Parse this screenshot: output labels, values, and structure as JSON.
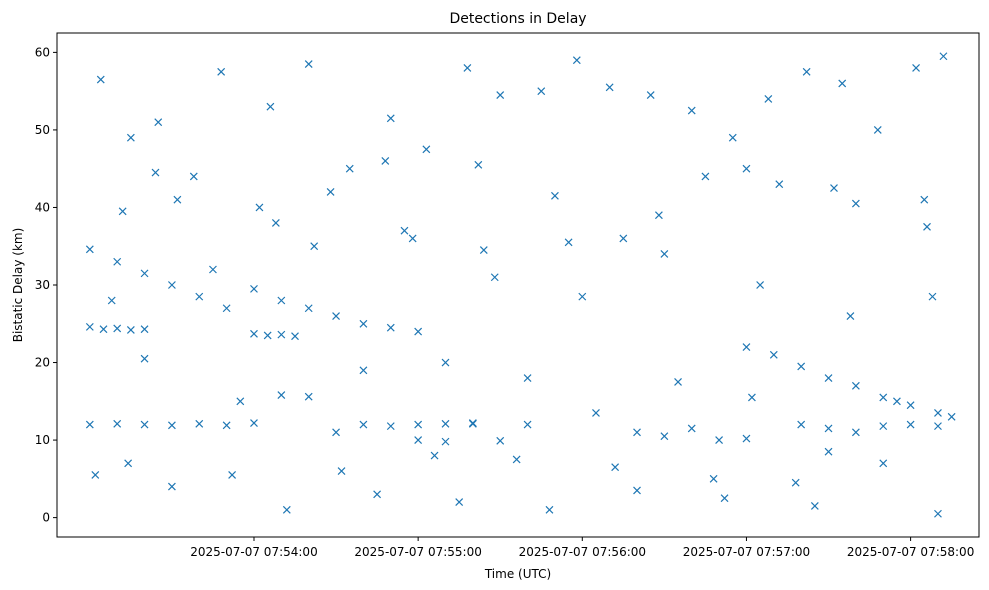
{
  "chart_data": {
    "type": "scatter",
    "title": "Detections in Delay",
    "xlabel": "Time (UTC)",
    "ylabel": "Bistatic Delay (km)",
    "marker": "x",
    "color": "#1f77b4",
    "xlim": [
      "2025-07-07 07:52:48",
      "2025-07-07 07:58:25"
    ],
    "ylim": [
      -2.5,
      62.5
    ],
    "x_ticks": [
      "2025-07-07 07:54:00",
      "2025-07-07 07:55:00",
      "2025-07-07 07:56:00",
      "2025-07-07 07:57:00",
      "2025-07-07 07:58:00"
    ],
    "y_ticks": [
      0,
      10,
      20,
      30,
      40,
      50,
      60
    ],
    "grid": false,
    "x": [
      "2025-07-07 07:53:00",
      "2025-07-07 07:53:10",
      "2025-07-07 07:53:20",
      "2025-07-07 07:53:30",
      "2025-07-07 07:53:40",
      "2025-07-07 07:53:50",
      "2025-07-07 07:54:00",
      "2025-07-07 07:54:10",
      "2025-07-07 07:54:20",
      "2025-07-07 07:54:30",
      "2025-07-07 07:54:40",
      "2025-07-07 07:54:50",
      "2025-07-07 07:55:00",
      "2025-07-07 07:53:00",
      "2025-07-07 07:53:05",
      "2025-07-07 07:53:10",
      "2025-07-07 07:53:15",
      "2025-07-07 07:53:20",
      "2025-07-07 07:53:00",
      "2025-07-07 07:53:10",
      "2025-07-07 07:53:20",
      "2025-07-07 07:53:30",
      "2025-07-07 07:53:40",
      "2025-07-07 07:53:50",
      "2025-07-07 07:54:00",
      "2025-07-07 07:54:10",
      "2025-07-07 07:54:20",
      "2025-07-07 07:54:30",
      "2025-07-07 07:54:40",
      "2025-07-07 07:54:50",
      "2025-07-07 07:55:00",
      "2025-07-07 07:55:10",
      "2025-07-07 07:55:20",
      "2025-07-07 07:54:00",
      "2025-07-07 07:54:05",
      "2025-07-07 07:54:10",
      "2025-07-07 07:54:15",
      "2025-07-07 07:55:00",
      "2025-07-07 07:55:10",
      "2025-07-07 07:55:20",
      "2025-07-07 07:55:30",
      "2025-07-07 07:55:40",
      "2025-07-07 07:56:20",
      "2025-07-07 07:56:30",
      "2025-07-07 07:56:40",
      "2025-07-07 07:56:50",
      "2025-07-07 07:57:00",
      "2025-07-07 07:57:00",
      "2025-07-07 07:57:10",
      "2025-07-07 07:57:20",
      "2025-07-07 07:57:30",
      "2025-07-07 07:57:40",
      "2025-07-07 07:57:50",
      "2025-07-07 07:58:00",
      "2025-07-07 07:58:10",
      "2025-07-07 07:58:15",
      "2025-07-07 07:57:20",
      "2025-07-07 07:57:30",
      "2025-07-07 07:57:40",
      "2025-07-07 07:57:50",
      "2025-07-07 07:58:00",
      "2025-07-07 07:58:10",
      "2025-07-07 07:53:04",
      "2025-07-07 07:53:15",
      "2025-07-07 07:53:25",
      "2025-07-07 07:53:32",
      "2025-07-07 07:53:48",
      "2025-07-07 07:54:06",
      "2025-07-07 07:54:20",
      "2025-07-07 07:54:35",
      "2025-07-07 07:54:50",
      "2025-07-07 07:55:03",
      "2025-07-07 07:55:18",
      "2025-07-07 07:55:30",
      "2025-07-07 07:55:45",
      "2025-07-07 07:55:58",
      "2025-07-07 07:56:10",
      "2025-07-07 07:56:25",
      "2025-07-07 07:56:40",
      "2025-07-07 07:56:55",
      "2025-07-07 07:57:08",
      "2025-07-07 07:57:22",
      "2025-07-07 07:57:35",
      "2025-07-07 07:57:48",
      "2025-07-07 07:58:02",
      "2025-07-07 07:58:12",
      "2025-07-07 07:53:12",
      "2025-07-07 07:53:38",
      "2025-07-07 07:54:02",
      "2025-07-07 07:54:28",
      "2025-07-07 07:54:55",
      "2025-07-07 07:55:22",
      "2025-07-07 07:55:50",
      "2025-07-07 07:56:15",
      "2025-07-07 07:56:45",
      "2025-07-07 07:57:12",
      "2025-07-07 07:57:40",
      "2025-07-07 07:58:05",
      "2025-07-07 07:53:20",
      "2025-07-07 07:53:55",
      "2025-07-07 07:54:40",
      "2025-07-07 07:55:10",
      "2025-07-07 07:55:40",
      "2025-07-07 07:56:05",
      "2025-07-07 07:56:35",
      "2025-07-07 07:57:02",
      "2025-07-07 07:57:30",
      "2025-07-07 07:57:55",
      "2025-07-07 07:53:02",
      "2025-07-07 07:53:30",
      "2025-07-07 07:54:12",
      "2025-07-07 07:54:45",
      "2025-07-07 07:55:15",
      "2025-07-07 07:55:48",
      "2025-07-07 07:56:20",
      "2025-07-07 07:56:52",
      "2025-07-07 07:57:25",
      "2025-07-07 07:58:10",
      "2025-07-07 07:53:08",
      "2025-07-07 07:53:45",
      "2025-07-07 07:54:22",
      "2025-07-07 07:54:58",
      "2025-07-07 07:55:28",
      "2025-07-07 07:56:00",
      "2025-07-07 07:56:30",
      "2025-07-07 07:57:05",
      "2025-07-07 07:57:38",
      "2025-07-07 07:58:08",
      "2025-07-07 07:53:14",
      "2025-07-07 07:53:52",
      "2025-07-07 07:54:32",
      "2025-07-07 07:55:06",
      "2025-07-07 07:55:36",
      "2025-07-07 07:56:12",
      "2025-07-07 07:56:48",
      "2025-07-07 07:57:18",
      "2025-07-07 07:57:50",
      "2025-07-07 07:53:24",
      "2025-07-07 07:54:08",
      "2025-07-07 07:54:48",
      "2025-07-07 07:55:24",
      "2025-07-07 07:55:55",
      "2025-07-07 07:56:28",
      "2025-07-07 07:57:00",
      "2025-07-07 07:57:32",
      "2025-07-07 07:58:06"
    ],
    "y": [
      34.6,
      33.0,
      31.5,
      30.0,
      28.5,
      27.0,
      29.5,
      28.0,
      27.0,
      26.0,
      25.0,
      24.5,
      24.0,
      24.6,
      24.3,
      24.4,
      24.2,
      24.3,
      12.0,
      12.1,
      12.0,
      11.9,
      12.1,
      11.9,
      12.2,
      15.8,
      15.6,
      11.0,
      12.0,
      11.8,
      12.0,
      12.1,
      12.2,
      23.7,
      23.5,
      23.6,
      23.4,
      10.0,
      9.8,
      12.1,
      9.9,
      12.0,
      11.0,
      10.5,
      11.5,
      10.0,
      10.2,
      22.0,
      21.0,
      19.5,
      18.0,
      17.0,
      15.5,
      14.5,
      13.5,
      13.0,
      12.0,
      11.5,
      11.0,
      11.8,
      12.0,
      11.8,
      56.5,
      49.0,
      51.0,
      41.0,
      57.5,
      53.0,
      58.5,
      45.0,
      51.5,
      47.5,
      58.0,
      54.5,
      55.0,
      59.0,
      55.5,
      54.5,
      52.5,
      49.0,
      54.0,
      57.5,
      56.0,
      50.0,
      58.0,
      59.5,
      39.5,
      44.0,
      40.0,
      42.0,
      37.0,
      45.5,
      41.5,
      36.0,
      44.0,
      43.0,
      40.5,
      41.0,
      20.5,
      15.0,
      19.0,
      20.0,
      18.0,
      13.5,
      17.5,
      15.5,
      8.5,
      15.0,
      5.5,
      4.0,
      1.0,
      3.0,
      2.0,
      1.0,
      3.5,
      2.5,
      1.5,
      0.5,
      28.0,
      32.0,
      35.0,
      36.0,
      31.0,
      28.5,
      34.0,
      30.0,
      26.0,
      28.5,
      7.0,
      5.5,
      6.0,
      8.0,
      7.5,
      6.5,
      5.0,
      4.5,
      7.0,
      44.5,
      38.0,
      46.0,
      34.5,
      35.5,
      39.0,
      45.0,
      42.5,
      37.5
    ]
  }
}
